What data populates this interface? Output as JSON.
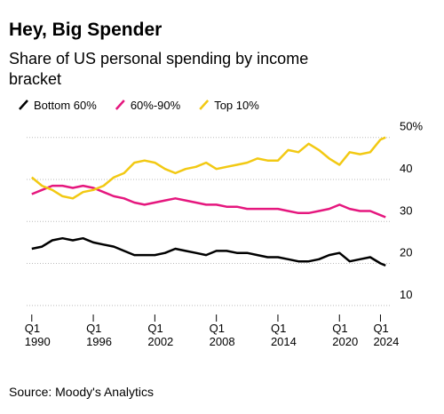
{
  "chart_data": {
    "type": "line",
    "title": "Hey, Big Spender",
    "subtitle": "Share of US personal spending by income bracket",
    "source": "Source: Moody's Analytics",
    "x": [
      1990,
      1991,
      1992,
      1993,
      1994,
      1995,
      1996,
      1997,
      1998,
      1999,
      2000,
      2001,
      2002,
      2003,
      2004,
      2005,
      2006,
      2007,
      2008,
      2009,
      2010,
      2011,
      2012,
      2013,
      2014,
      2015,
      2016,
      2017,
      2018,
      2019,
      2020,
      2021,
      2022,
      2023,
      2024,
      2024.5
    ],
    "series": [
      {
        "name": "Bottom 60%",
        "color": "#000000",
        "values": [
          23.5,
          24,
          25.5,
          26,
          25.5,
          26,
          25,
          24.5,
          24,
          23,
          22,
          22,
          22,
          22.5,
          23.5,
          23,
          22.5,
          22,
          23,
          23,
          22.5,
          22.5,
          22,
          21.5,
          21.5,
          21,
          20.5,
          20.5,
          21,
          22,
          22.5,
          20.5,
          21,
          21.5,
          20,
          19.5
        ]
      },
      {
        "name": "60%-90%",
        "color": "#e5177e",
        "values": [
          36.5,
          37.5,
          38.5,
          38.5,
          38,
          38.5,
          38,
          37,
          36,
          35.5,
          34.5,
          34,
          34.5,
          35,
          35.5,
          35,
          34.5,
          34,
          34,
          33.5,
          33.5,
          33,
          33,
          33,
          33,
          32.5,
          32,
          32,
          32.5,
          33,
          34,
          33,
          32.5,
          32.5,
          31.5,
          31
        ]
      },
      {
        "name": "Top 10%",
        "color": "#f2c913",
        "values": [
          40.5,
          38.5,
          37.5,
          36,
          35.5,
          37,
          37.5,
          38.5,
          40.5,
          41.5,
          44,
          44.5,
          44,
          42.5,
          41.5,
          42.5,
          43,
          44,
          42.5,
          43,
          43.5,
          44,
          45,
          44.5,
          44.5,
          47,
          46.5,
          48.5,
          47,
          45,
          43.5,
          46.5,
          46,
          46.5,
          49.5,
          50
        ]
      }
    ],
    "xlim": [
      1989.5,
      2025
    ],
    "xticks": [
      {
        "value": 1990,
        "label": "Q1 1990"
      },
      {
        "value": 1996,
        "label": "Q1 1996"
      },
      {
        "value": 2002,
        "label": "Q1 2002"
      },
      {
        "value": 2008,
        "label": "Q1 2008"
      },
      {
        "value": 2014,
        "label": "Q1 2014"
      },
      {
        "value": 2020,
        "label": "Q1 2020"
      },
      {
        "value": 2024,
        "label": "Q1 2024"
      }
    ],
    "ylim": [
      7,
      51
    ],
    "yticks": [
      10,
      20,
      30,
      40,
      {
        "value": 50,
        "label": "50%"
      }
    ],
    "grid": true
  }
}
